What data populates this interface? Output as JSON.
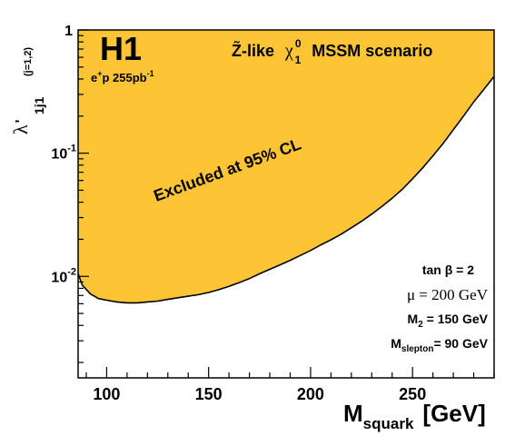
{
  "chart_data": {
    "type": "area",
    "x_scale": "linear",
    "y_scale": "log",
    "xlim": [
      86,
      290
    ],
    "ylim": [
      0.0015,
      1
    ],
    "x_ticks": [
      {
        "value": 100,
        "label": "100"
      },
      {
        "value": 150,
        "label": "150"
      },
      {
        "value": 200,
        "label": "200"
      },
      {
        "value": 250,
        "label": "250"
      }
    ],
    "y_ticks": [
      {
        "value": 1,
        "label": "1"
      },
      {
        "value": 0.1,
        "label": "10",
        "exp": "-1"
      },
      {
        "value": 0.01,
        "label": "10",
        "exp": "-2"
      }
    ],
    "grid": false,
    "fill_color": "#FDC535",
    "series": [
      {
        "region": "excluded_above_curve",
        "x": [
          86,
          88,
          92,
          96,
          100,
          105,
          110,
          115,
          120,
          125,
          130,
          135,
          140,
          145,
          150,
          155,
          160,
          165,
          170,
          175,
          180,
          185,
          190,
          195,
          200,
          205,
          210,
          215,
          220,
          225,
          230,
          235,
          240,
          245,
          250,
          255,
          260,
          265,
          270,
          275,
          280,
          285,
          290
        ],
        "y": [
          0.0105,
          0.0085,
          0.0072,
          0.0066,
          0.0064,
          0.0062,
          0.0061,
          0.0061,
          0.0062,
          0.0063,
          0.0065,
          0.0067,
          0.0069,
          0.0071,
          0.0074,
          0.0078,
          0.0083,
          0.0089,
          0.0096,
          0.0105,
          0.0114,
          0.0124,
          0.0135,
          0.0148,
          0.0162,
          0.018,
          0.0198,
          0.022,
          0.0248,
          0.028,
          0.032,
          0.037,
          0.043,
          0.051,
          0.062,
          0.076,
          0.095,
          0.12,
          0.155,
          0.2,
          0.26,
          0.33,
          0.42
        ]
      }
    ]
  },
  "labels": {
    "brand": "H1",
    "data_sample": "e",
    "data_sample_sup": "+",
    "data_sample_rest": "p 255pb",
    "data_sample_exp": "-1",
    "scenario_zlike": "Z̃-like",
    "scenario_chi": "χ",
    "scenario_chi_sup": "0",
    "scenario_chi_sub": "1",
    "scenario_rest": "MSSM scenario",
    "excluded": "Excluded at 95% CL",
    "ylabel_main": "λ",
    "ylabel_prime": "'",
    "ylabel_sub": "1j1",
    "ylabel_sup": "(j=1,2)",
    "xlabel_main": "M",
    "xlabel_sub": "squark",
    "xlabel_unit": "[GeV]",
    "param_tanb": "tan β = 2",
    "param_mu": "μ  = 200 GeV",
    "param_m2_M": "M",
    "param_m2_sub": "2",
    "param_m2_val": " = 150 GeV",
    "param_msl_M": "M",
    "param_msl_sub": "slepton",
    "param_msl_val": "= 90 GeV"
  }
}
